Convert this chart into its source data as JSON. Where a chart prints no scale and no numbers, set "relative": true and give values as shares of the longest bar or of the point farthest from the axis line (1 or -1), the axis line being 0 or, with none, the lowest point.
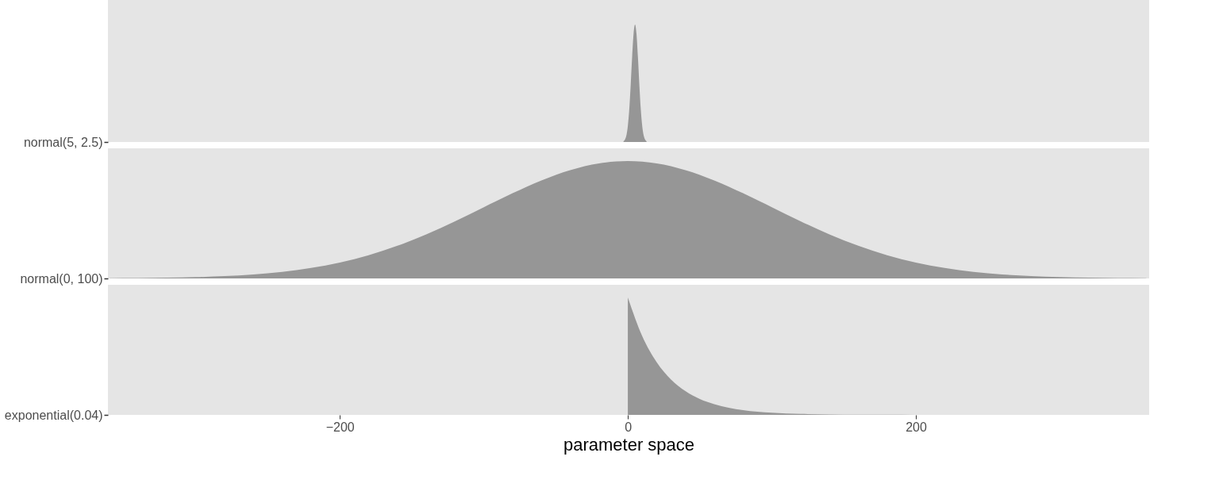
{
  "chart_data": [
    {
      "type": "area",
      "relative": true,
      "ylabel": "normal(5, 2.5)",
      "color": "#969696",
      "xlim": [
        -361,
        362
      ],
      "tick_labels": "y",
      "x": [
        -3,
        -2,
        -1,
        0,
        1,
        2,
        3,
        4,
        5,
        6,
        7,
        8,
        9,
        10,
        11,
        12,
        13
      ],
      "values": [
        0.006,
        0.02,
        0.056,
        0.135,
        0.278,
        0.487,
        0.726,
        0.923,
        1,
        0.923,
        0.726,
        0.487,
        0.278,
        0.135,
        0.056,
        0.02,
        0.006
      ]
    },
    {
      "type": "area",
      "relative": true,
      "ylabel": "normal(0, 100)",
      "color": "#969696",
      "xlim": [
        -361,
        362
      ],
      "tick_labels": "y",
      "x": [
        -360,
        -340,
        -320,
        -300,
        -280,
        -260,
        -240,
        -220,
        -200,
        -180,
        -160,
        -140,
        -120,
        -100,
        -80,
        -60,
        -40,
        -20,
        0,
        20,
        40,
        60,
        80,
        100,
        120,
        140,
        160,
        180,
        200,
        220,
        240,
        260,
        280,
        300,
        320,
        340,
        360
      ],
      "values": [
        0.002,
        0.003,
        0.006,
        0.011,
        0.02,
        0.034,
        0.056,
        0.089,
        0.135,
        0.198,
        0.278,
        0.375,
        0.487,
        0.607,
        0.726,
        0.835,
        0.923,
        0.98,
        1,
        0.98,
        0.923,
        0.835,
        0.726,
        0.607,
        0.487,
        0.375,
        0.278,
        0.198,
        0.135,
        0.089,
        0.056,
        0.034,
        0.02,
        0.011,
        0.006,
        0.003,
        0.002
      ]
    },
    {
      "type": "area",
      "relative": true,
      "ylabel": "exponential(0.04)",
      "color": "#969696",
      "xlim": [
        -361,
        362
      ],
      "xticks": [
        -200,
        0,
        200
      ],
      "xlabel": "parameter space",
      "x": [
        0,
        10,
        20,
        30,
        40,
        50,
        60,
        70,
        80,
        90,
        100,
        120,
        140,
        160,
        180,
        200,
        220
      ],
      "values": [
        1,
        0.67,
        0.449,
        0.301,
        0.202,
        0.135,
        0.091,
        0.061,
        0.041,
        0.027,
        0.018,
        0.008,
        0.004,
        0.002,
        0.001,
        0.0003,
        0
      ]
    }
  ]
}
